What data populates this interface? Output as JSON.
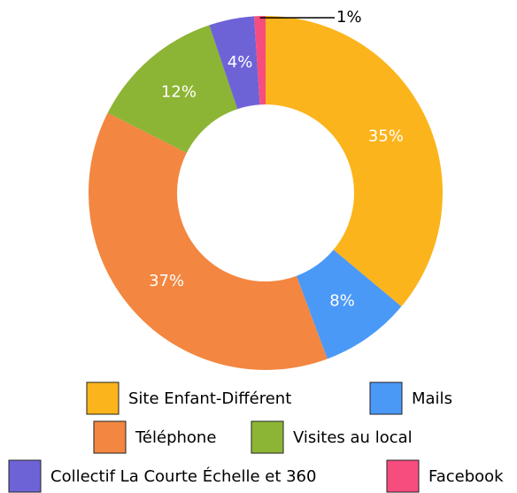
{
  "chart_data": {
    "type": "donut",
    "categories": [
      "Site Enfant-Différent",
      "Mails",
      "Téléphone",
      "Visites au local",
      "Collectif La Courte Échelle et 360",
      "Facebook"
    ],
    "values": [
      35,
      8,
      37,
      12,
      4,
      1
    ],
    "value_labels": [
      "35%",
      "8%",
      "37%",
      "12%",
      "4%",
      "1%"
    ],
    "colors": [
      "#fbb41c",
      "#4a99f7",
      "#f38640",
      "#8db535",
      "#6e63d6",
      "#f74c7e"
    ],
    "legend": "bottom"
  }
}
